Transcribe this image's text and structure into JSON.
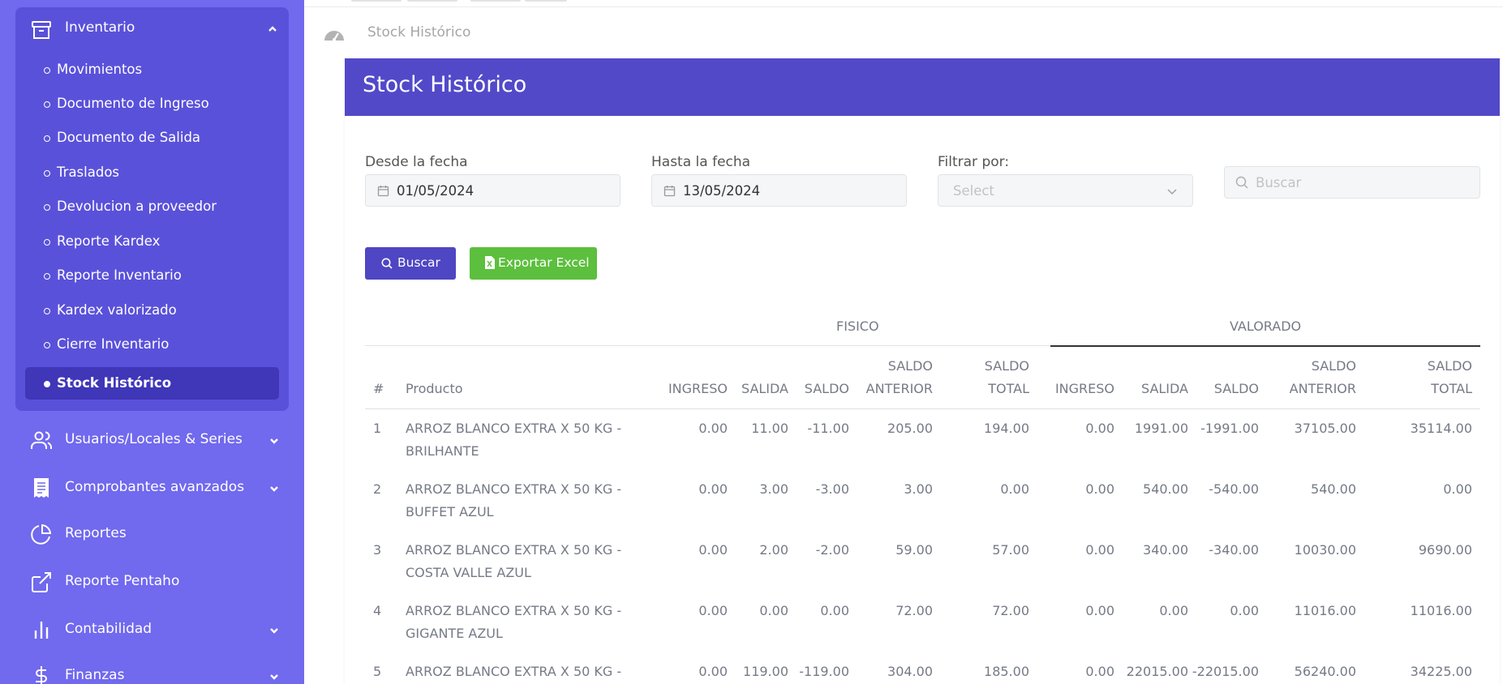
{
  "sidebar": {
    "inventario": {
      "label": "Inventario",
      "items": [
        {
          "label": "Movimientos"
        },
        {
          "label": "Documento de Ingreso"
        },
        {
          "label": "Documento de Salida"
        },
        {
          "label": "Traslados"
        },
        {
          "label": "Devolucion a proveedor"
        },
        {
          "label": "Reporte Kardex"
        },
        {
          "label": "Reporte Inventario"
        },
        {
          "label": "Kardex valorizado"
        },
        {
          "label": "Cierre Inventario"
        },
        {
          "label": "Stock Histórico"
        }
      ]
    },
    "nav": [
      {
        "label": "Usuarios/Locales & Series",
        "icon": "users-icon"
      },
      {
        "label": "Comprobantes avanzados",
        "icon": "receipt-icon"
      },
      {
        "label": "Reportes",
        "icon": "pie-chart-icon"
      },
      {
        "label": "Reporte Pentaho",
        "icon": "external-link-icon"
      },
      {
        "label": "Contabilidad",
        "icon": "bar-chart-icon"
      },
      {
        "label": "Finanzas",
        "icon": "dollar-icon"
      }
    ]
  },
  "breadcrumb": {
    "label": "Stock Histórico"
  },
  "card": {
    "title": "Stock Histórico"
  },
  "filters": {
    "desde": {
      "label": "Desde la fecha",
      "value": "01/05/2024"
    },
    "hasta": {
      "label": "Hasta la fecha",
      "value": "13/05/2024"
    },
    "filtrar": {
      "label": "Filtrar por:",
      "placeholder": "Select"
    },
    "search": {
      "placeholder": "Buscar"
    }
  },
  "buttons": {
    "buscar": "Buscar",
    "exportar": "Exportar Excel"
  },
  "table": {
    "groups": {
      "fisico": "FISICO",
      "valorado": "VALORADO"
    },
    "headers": {
      "num": "#",
      "producto": "Producto",
      "ingreso": "INGRESO",
      "salida": "SALIDA",
      "saldo": "SALDO",
      "saldo_anterior_1": "SALDO",
      "saldo_anterior_2": "ANTERIOR",
      "saldo_total_1": "SALDO",
      "saldo_total_2": "TOTAL"
    },
    "rows": [
      {
        "n": "1",
        "producto": "ARROZ BLANCO EXTRA X 50 KG - BRILHANTE",
        "f": [
          "0.00",
          "11.00",
          "-11.00",
          "205.00",
          "194.00"
        ],
        "v": [
          "0.00",
          "1991.00",
          "-1991.00",
          "37105.00",
          "35114.00"
        ]
      },
      {
        "n": "2",
        "producto": "ARROZ BLANCO EXTRA X 50 KG - BUFFET AZUL",
        "f": [
          "0.00",
          "3.00",
          "-3.00",
          "3.00",
          "0.00"
        ],
        "v": [
          "0.00",
          "540.00",
          "-540.00",
          "540.00",
          "0.00"
        ]
      },
      {
        "n": "3",
        "producto": "ARROZ BLANCO EXTRA X 50 KG - COSTA VALLE AZUL",
        "f": [
          "0.00",
          "2.00",
          "-2.00",
          "59.00",
          "57.00"
        ],
        "v": [
          "0.00",
          "340.00",
          "-340.00",
          "10030.00",
          "9690.00"
        ]
      },
      {
        "n": "4",
        "producto": "ARROZ BLANCO EXTRA X 50 KG - GIGANTE AZUL",
        "f": [
          "0.00",
          "0.00",
          "0.00",
          "72.00",
          "72.00"
        ],
        "v": [
          "0.00",
          "0.00",
          "0.00",
          "11016.00",
          "11016.00"
        ]
      },
      {
        "n": "5",
        "producto": "ARROZ BLANCO EXTRA X 50 KG -",
        "f": [
          "0.00",
          "119.00",
          "-119.00",
          "304.00",
          "185.00"
        ],
        "v": [
          "0.00",
          "22015.00",
          "-22015.00",
          "56240.00",
          "34225.00"
        ]
      }
    ]
  }
}
